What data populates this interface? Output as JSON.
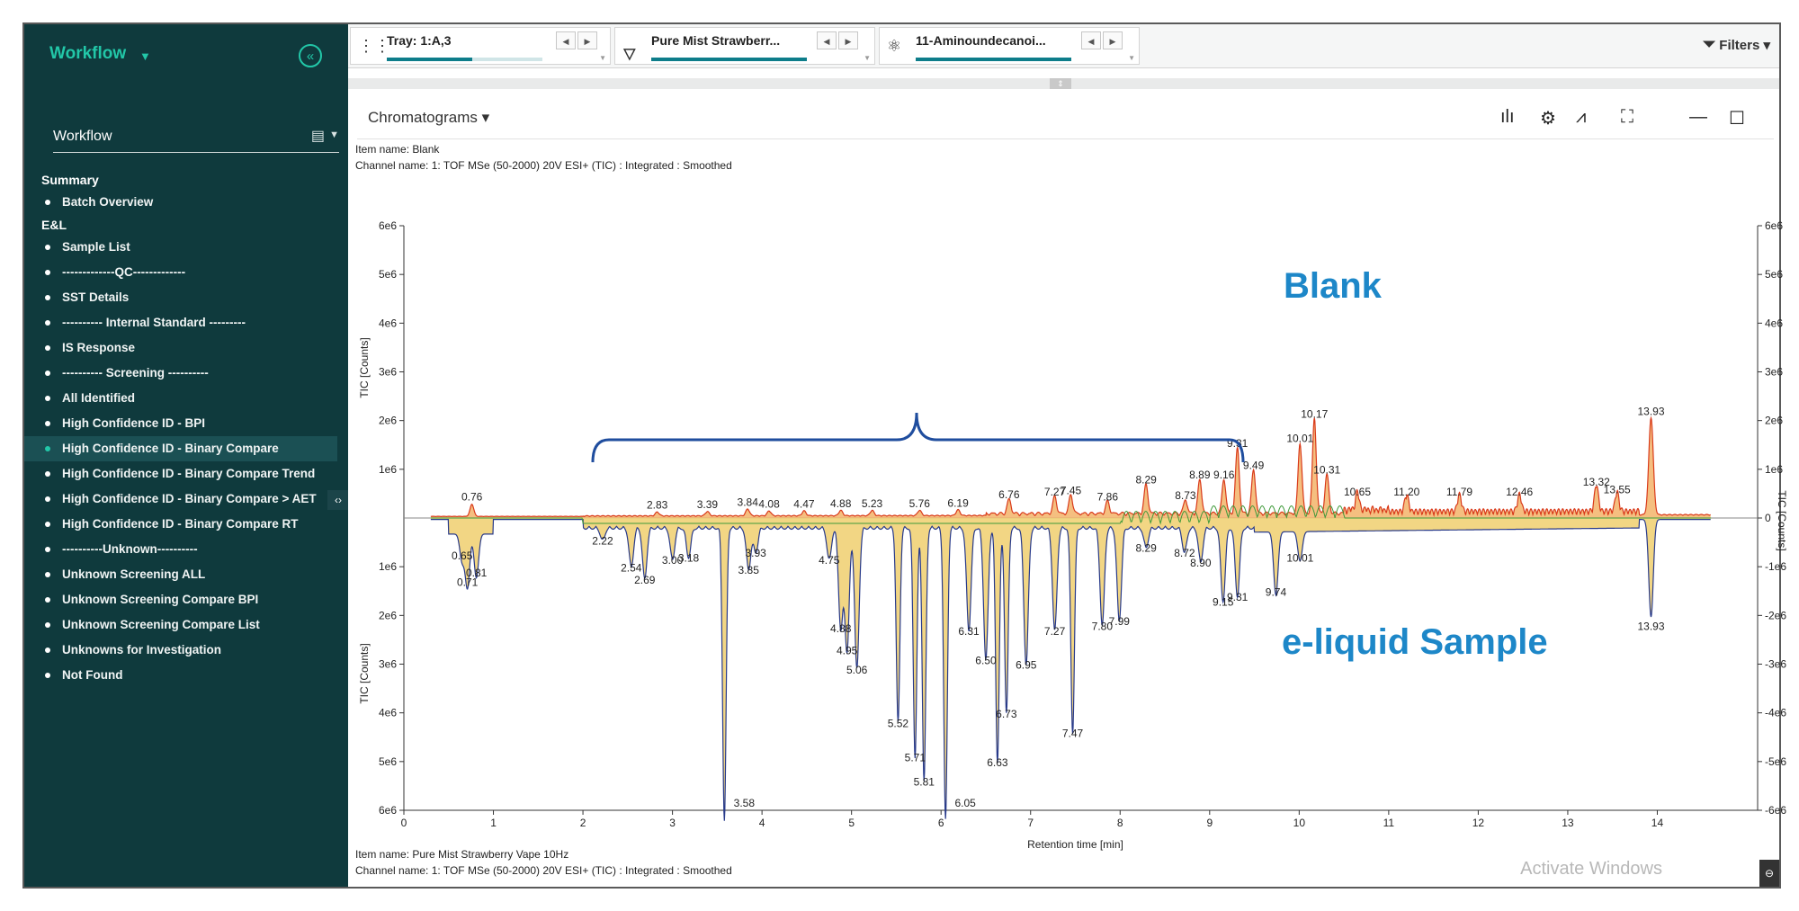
{
  "sidebar": {
    "title": "Workflow",
    "collapse_icon": "chevrons-left-icon",
    "field_label": "Workflow",
    "groups": [
      {
        "label": "Summary",
        "items": [
          {
            "label": "Batch Overview",
            "active": false
          }
        ]
      },
      {
        "label": "E&L",
        "items": [
          {
            "label": "Sample List",
            "active": false
          },
          {
            "label": "-------------QC-------------",
            "active": false
          },
          {
            "label": "SST Details",
            "active": false
          },
          {
            "label": "---------- Internal Standard ---------",
            "active": false
          },
          {
            "label": "IS Response",
            "active": false
          },
          {
            "label": "---------- Screening ----------",
            "active": false
          },
          {
            "label": "All Identified",
            "active": false
          },
          {
            "label": "High Confidence ID - BPI",
            "active": false
          },
          {
            "label": "High Confidence ID - Binary Compare",
            "active": true
          },
          {
            "label": "High Confidence ID - Binary Compare Trend",
            "active": false
          },
          {
            "label": "High Confidence ID - Binary Compare > AET",
            "active": false
          },
          {
            "label": "High Confidence ID - Binary Compare RT",
            "active": false
          },
          {
            "label": "----------Unknown----------",
            "active": false
          },
          {
            "label": "Unknown Screening ALL",
            "active": false
          },
          {
            "label": "Unknown Screening Compare BPI",
            "active": false
          },
          {
            "label": "Unknown Screening Compare List",
            "active": false
          },
          {
            "label": "Unknowns for Investigation",
            "active": false
          },
          {
            "label": "Not Found",
            "active": false
          }
        ]
      }
    ]
  },
  "topbar": {
    "tray": {
      "label": "Tray: 1:A,3",
      "icon": "tray-grid-icon",
      "progress": 0.55
    },
    "sample": {
      "label": "Pure Mist Strawberr...",
      "icon": "vial-icon",
      "progress": 1.0
    },
    "compound": {
      "label": "11-Aminoundecanoi...",
      "icon": "molecule-icon",
      "progress": 1.0
    },
    "filters_label": "Filters"
  },
  "panel": {
    "title": "Chromatograms",
    "top_item": "Item name: Blank",
    "top_channel": "Channel name: 1: TOF MSe (50-2000) 20V ESI+ (TIC) : Integrated : Smoothed",
    "bottom_item": "Item name: Pure Mist Strawberry Vape 10Hz",
    "bottom_channel": "Channel name: 1: TOF MSe (50-2000) 20V ESI+ (TIC) : Integrated : Smoothed",
    "watermark": "Activate Windows"
  },
  "chart_data": {
    "type": "line",
    "xlabel": "Retention time [min]",
    "ylabel_top": "TIC [Counts]",
    "ylabel_bottom": "TIC [Counts]",
    "ylabel_right": "TIC [Counts]",
    "xlim": [
      0,
      15
    ],
    "xticks": [
      "0",
      "1",
      "2",
      "3",
      "4",
      "5",
      "6",
      "7",
      "8",
      "9",
      "10",
      "11",
      "12",
      "13",
      "14"
    ],
    "yticks_left_top": [
      "6e6",
      "5e6",
      "4e6",
      "3e6",
      "2e6",
      "1e6"
    ],
    "yticks_left_bottom": [
      "1e6",
      "2e6",
      "3e6",
      "4e6",
      "5e6",
      "6e6"
    ],
    "yticks_right": [
      "6e6",
      "5e6",
      "4e6",
      "3e6",
      "2e6",
      "1e6",
      "0",
      "-1e6",
      "-2e6",
      "-3e6",
      "-4e6",
      "-5e6",
      "-6e6"
    ],
    "ylim_top": [
      0,
      6000000
    ],
    "ylim_bottom": [
      0,
      6000000
    ],
    "annotations": {
      "upper": "Blank",
      "lower": "e-liquid Sample"
    },
    "colors": {
      "upper_line": "#d93a1a",
      "upper_fill": "#f3b46a",
      "lower_line": "#283a8a",
      "lower_fill": "#f1d277",
      "green_line": "#3f9a3a",
      "annotation": "#1d87c8",
      "bracket": "#1f4d9e"
    },
    "series": [
      {
        "name": "Blank",
        "direction": "up",
        "peaks": [
          {
            "x": 0.76,
            "y": 250000,
            "label": "0.76"
          },
          {
            "x": 2.83,
            "y": 80000,
            "label": "2.83"
          },
          {
            "x": 3.39,
            "y": 90000,
            "label": "3.39"
          },
          {
            "x": 3.84,
            "y": 140000,
            "label": "3.84"
          },
          {
            "x": 4.08,
            "y": 100000,
            "label": "4.08"
          },
          {
            "x": 4.47,
            "y": 100000,
            "label": "4.47"
          },
          {
            "x": 4.88,
            "y": 110000,
            "label": "4.88"
          },
          {
            "x": 5.23,
            "y": 110000,
            "label": "5.23"
          },
          {
            "x": 5.76,
            "y": 110000,
            "label": "5.76"
          },
          {
            "x": 6.19,
            "y": 120000,
            "label": "6.19"
          },
          {
            "x": 6.76,
            "y": 300000,
            "label": "6.76"
          },
          {
            "x": 7.27,
            "y": 350000,
            "label": "7.27"
          },
          {
            "x": 7.45,
            "y": 380000,
            "label": "7.45"
          },
          {
            "x": 7.86,
            "y": 250000,
            "label": "7.86"
          },
          {
            "x": 8.29,
            "y": 600000,
            "label": "8.29"
          },
          {
            "x": 8.73,
            "y": 280000,
            "label": "8.73"
          },
          {
            "x": 8.89,
            "y": 700000,
            "label": "8.89"
          },
          {
            "x": 9.16,
            "y": 700000,
            "label": "9.16"
          },
          {
            "x": 9.31,
            "y": 1350000,
            "label": "9.31"
          },
          {
            "x": 9.49,
            "y": 900000,
            "label": "9.49"
          },
          {
            "x": 10.01,
            "y": 1450000,
            "label": "10.01"
          },
          {
            "x": 10.17,
            "y": 1950000,
            "label": "10.17"
          },
          {
            "x": 10.31,
            "y": 800000,
            "label": "10.31"
          },
          {
            "x": 10.65,
            "y": 350000,
            "label": "10.65"
          },
          {
            "x": 11.2,
            "y": 350000,
            "label": "11.20"
          },
          {
            "x": 11.79,
            "y": 350000,
            "label": "11.79"
          },
          {
            "x": 12.46,
            "y": 350000,
            "label": "12.46"
          },
          {
            "x": 13.32,
            "y": 550000,
            "label": "13.32"
          },
          {
            "x": 13.55,
            "y": 400000,
            "label": "13.55"
          },
          {
            "x": 13.93,
            "y": 2000000,
            "label": "13.93"
          }
        ]
      },
      {
        "name": "e-liquid Sample",
        "direction": "down",
        "peaks": [
          {
            "x": 0.65,
            "y": 550000,
            "label": "0.65"
          },
          {
            "x": 0.71,
            "y": 1100000,
            "label": "0.71"
          },
          {
            "x": 0.81,
            "y": 900000,
            "label": "0.81"
          },
          {
            "x": 2.22,
            "y": 250000,
            "label": "2.22"
          },
          {
            "x": 2.54,
            "y": 800000,
            "label": "2.54"
          },
          {
            "x": 2.69,
            "y": 1050000,
            "label": "2.69"
          },
          {
            "x": 3.0,
            "y": 650000,
            "label": "3.00"
          },
          {
            "x": 3.18,
            "y": 600000,
            "label": "3.18"
          },
          {
            "x": 3.58,
            "y": 6000000,
            "label": "3.58"
          },
          {
            "x": 3.85,
            "y": 850000,
            "label": "3.85"
          },
          {
            "x": 3.93,
            "y": 500000,
            "label": "3.93"
          },
          {
            "x": 4.75,
            "y": 650000,
            "label": "4.75"
          },
          {
            "x": 4.88,
            "y": 2050000,
            "label": "4.88"
          },
          {
            "x": 4.95,
            "y": 2500000,
            "label": "4.95"
          },
          {
            "x": 5.06,
            "y": 2900000,
            "label": "5.06"
          },
          {
            "x": 5.52,
            "y": 4000000,
            "label": "5.52"
          },
          {
            "x": 5.71,
            "y": 4700000,
            "label": "5.71"
          },
          {
            "x": 5.81,
            "y": 5200000,
            "label": "5.81"
          },
          {
            "x": 6.05,
            "y": 6000000,
            "label": "6.05"
          },
          {
            "x": 6.31,
            "y": 2100000,
            "label": "6.31"
          },
          {
            "x": 6.5,
            "y": 2700000,
            "label": "6.50"
          },
          {
            "x": 6.63,
            "y": 4800000,
            "label": "6.63"
          },
          {
            "x": 6.73,
            "y": 3800000,
            "label": "6.73"
          },
          {
            "x": 6.95,
            "y": 2800000,
            "label": "6.95"
          },
          {
            "x": 7.27,
            "y": 2100000,
            "label": "7.27"
          },
          {
            "x": 7.47,
            "y": 4200000,
            "label": "7.47"
          },
          {
            "x": 7.8,
            "y": 2000000,
            "label": "7.80"
          },
          {
            "x": 7.99,
            "y": 1900000,
            "label": "7.99"
          },
          {
            "x": 8.29,
            "y": 400000,
            "label": "8.29"
          },
          {
            "x": 8.72,
            "y": 500000,
            "label": "8.72"
          },
          {
            "x": 8.9,
            "y": 700000,
            "label": "8.90"
          },
          {
            "x": 9.15,
            "y": 1500000,
            "label": "9.15"
          },
          {
            "x": 9.31,
            "y": 1400000,
            "label": "9.31"
          },
          {
            "x": 9.74,
            "y": 1300000,
            "label": "9.74"
          },
          {
            "x": 10.01,
            "y": 600000,
            "label": "10.01"
          },
          {
            "x": 13.93,
            "y": 2000000,
            "label": "13.93"
          }
        ]
      }
    ]
  }
}
